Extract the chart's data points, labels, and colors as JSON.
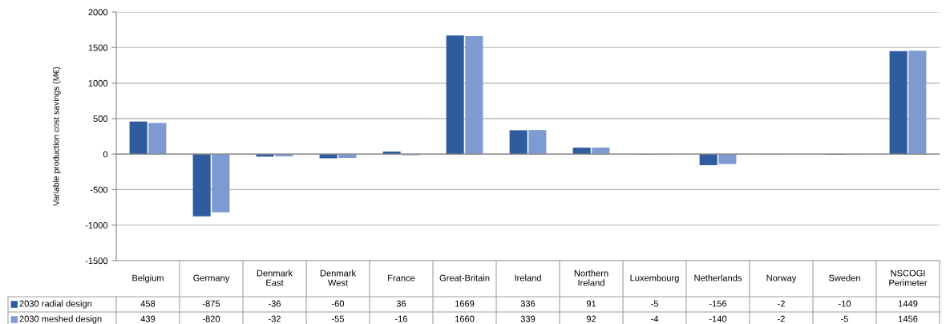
{
  "chart_data": {
    "type": "bar",
    "ylabel": "Variable production cost savings (M€)",
    "categories": [
      "Belgium",
      "Germany",
      "Denmark\nEast",
      "Denmark\nWest",
      "France",
      "Great-Britain",
      "Ireland",
      "Northern\nIreland",
      "Luxembourg",
      "Netherlands",
      "Norway",
      "Sweden",
      "NSCOGI\nPerimeter"
    ],
    "series": [
      {
        "name": "2030 radial design",
        "color": "#2f5c9e",
        "values": [
          458,
          -875,
          -36,
          -60,
          36,
          1669,
          336,
          91,
          -5,
          -156,
          -2,
          -10,
          1449
        ]
      },
      {
        "name": "2030 meshed design",
        "color": "#7d9bd0",
        "values": [
          439,
          -820,
          -32,
          -55,
          -16,
          1660,
          339,
          92,
          -4,
          -140,
          -2,
          -5,
          1456
        ]
      }
    ],
    "ylim": [
      -1500,
      2000
    ],
    "yticks": [
      -1500,
      -1000,
      -500,
      0,
      500,
      1000,
      1500,
      2000
    ],
    "grid": "y",
    "legend": "bottom",
    "data_labels": true
  }
}
